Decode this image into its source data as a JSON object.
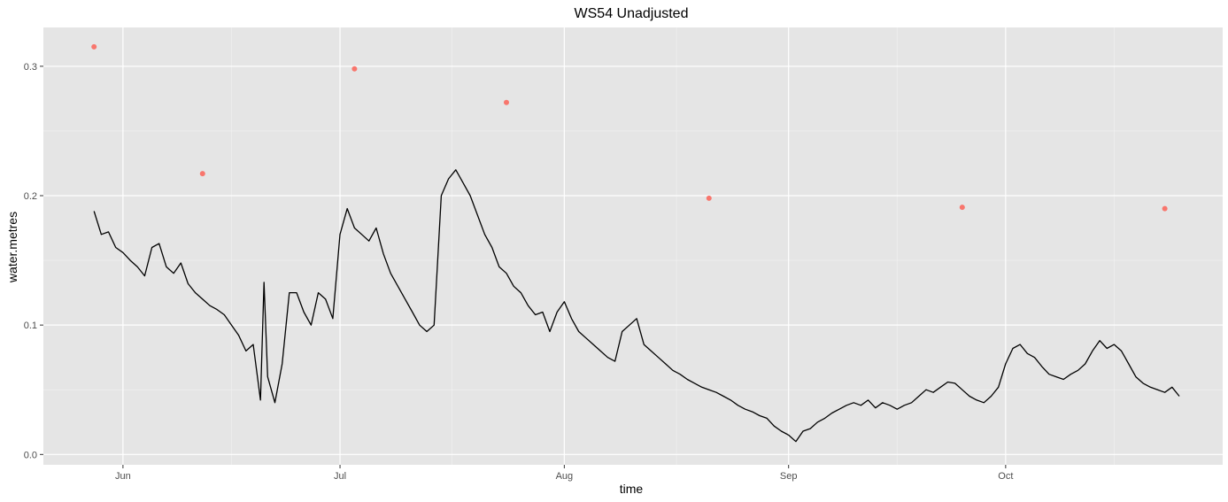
{
  "chart_data": {
    "type": "line",
    "title": "WS54 Unadjusted",
    "xlabel": "time",
    "ylabel": "water.metres",
    "x_ticks": [
      "Jun",
      "Jul",
      "Aug",
      "Sep",
      "Oct"
    ],
    "x_tick_dates": [
      "2019-06-01",
      "2019-07-01",
      "2019-08-01",
      "2019-09-01",
      "2019-10-01"
    ],
    "y_ticks": [
      "0.0",
      "0.1",
      "0.2",
      "0.3"
    ],
    "y_tick_values": [
      0.0,
      0.1,
      0.2,
      0.3
    ],
    "xlim": [
      "2019-05-21",
      "2019-10-31"
    ],
    "ylim": [
      -0.008,
      0.33
    ],
    "grid": true,
    "background": "#e5e5e5",
    "grid_major_color": "#ffffff",
    "line_color": "#000000",
    "point_color": "#f8766d",
    "series": [
      {
        "kind": "line",
        "points": [
          [
            "2019-05-28",
            0.188
          ],
          [
            "2019-05-29",
            0.17
          ],
          [
            "2019-05-30",
            0.172
          ],
          [
            "2019-05-31",
            0.16
          ],
          [
            "2019-06-01",
            0.156
          ],
          [
            "2019-06-02",
            0.15
          ],
          [
            "2019-06-03",
            0.145
          ],
          [
            "2019-06-04",
            0.138
          ],
          [
            "2019-06-05",
            0.16
          ],
          [
            "2019-06-06",
            0.163
          ],
          [
            "2019-06-07",
            0.145
          ],
          [
            "2019-06-08",
            0.14
          ],
          [
            "2019-06-09",
            0.148
          ],
          [
            "2019-06-10",
            0.132
          ],
          [
            "2019-06-11",
            0.125
          ],
          [
            "2019-06-12",
            0.12
          ],
          [
            "2019-06-13",
            0.115
          ],
          [
            "2019-06-14",
            0.112
          ],
          [
            "2019-06-15",
            0.108
          ],
          [
            "2019-06-16",
            0.1
          ],
          [
            "2019-06-17",
            0.092
          ],
          [
            "2019-06-18",
            0.08
          ],
          [
            "2019-06-19",
            0.085
          ],
          [
            "2019-06-20",
            0.042
          ],
          [
            "2019-06-20T12:00",
            0.133
          ],
          [
            "2019-06-21",
            0.06
          ],
          [
            "2019-06-22",
            0.04
          ],
          [
            "2019-06-23",
            0.07
          ],
          [
            "2019-06-24",
            0.125
          ],
          [
            "2019-06-25",
            0.125
          ],
          [
            "2019-06-26",
            0.11
          ],
          [
            "2019-06-27",
            0.1
          ],
          [
            "2019-06-28",
            0.125
          ],
          [
            "2019-06-29",
            0.12
          ],
          [
            "2019-06-30",
            0.105
          ],
          [
            "2019-07-01",
            0.17
          ],
          [
            "2019-07-02",
            0.19
          ],
          [
            "2019-07-03",
            0.175
          ],
          [
            "2019-07-04",
            0.17
          ],
          [
            "2019-07-05",
            0.165
          ],
          [
            "2019-07-06",
            0.175
          ],
          [
            "2019-07-07",
            0.155
          ],
          [
            "2019-07-08",
            0.14
          ],
          [
            "2019-07-09",
            0.13
          ],
          [
            "2019-07-10",
            0.12
          ],
          [
            "2019-07-11",
            0.11
          ],
          [
            "2019-07-12",
            0.1
          ],
          [
            "2019-07-13",
            0.095
          ],
          [
            "2019-07-14",
            0.1
          ],
          [
            "2019-07-15",
            0.2
          ],
          [
            "2019-07-16",
            0.213
          ],
          [
            "2019-07-17",
            0.22
          ],
          [
            "2019-07-18",
            0.21
          ],
          [
            "2019-07-19",
            0.2
          ],
          [
            "2019-07-20",
            0.185
          ],
          [
            "2019-07-21",
            0.17
          ],
          [
            "2019-07-22",
            0.16
          ],
          [
            "2019-07-23",
            0.145
          ],
          [
            "2019-07-24",
            0.14
          ],
          [
            "2019-07-25",
            0.13
          ],
          [
            "2019-07-26",
            0.125
          ],
          [
            "2019-07-27",
            0.115
          ],
          [
            "2019-07-28",
            0.108
          ],
          [
            "2019-07-29",
            0.11
          ],
          [
            "2019-07-30",
            0.095
          ],
          [
            "2019-07-31",
            0.11
          ],
          [
            "2019-08-01",
            0.118
          ],
          [
            "2019-08-02",
            0.105
          ],
          [
            "2019-08-03",
            0.095
          ],
          [
            "2019-08-04",
            0.09
          ],
          [
            "2019-08-05",
            0.085
          ],
          [
            "2019-08-06",
            0.08
          ],
          [
            "2019-08-07",
            0.075
          ],
          [
            "2019-08-08",
            0.072
          ],
          [
            "2019-08-09",
            0.095
          ],
          [
            "2019-08-10",
            0.1
          ],
          [
            "2019-08-11",
            0.105
          ],
          [
            "2019-08-12",
            0.085
          ],
          [
            "2019-08-13",
            0.08
          ],
          [
            "2019-08-14",
            0.075
          ],
          [
            "2019-08-15",
            0.07
          ],
          [
            "2019-08-16",
            0.065
          ],
          [
            "2019-08-17",
            0.062
          ],
          [
            "2019-08-18",
            0.058
          ],
          [
            "2019-08-19",
            0.055
          ],
          [
            "2019-08-20",
            0.052
          ],
          [
            "2019-08-21",
            0.05
          ],
          [
            "2019-08-22",
            0.048
          ],
          [
            "2019-08-23",
            0.045
          ],
          [
            "2019-08-24",
            0.042
          ],
          [
            "2019-08-25",
            0.038
          ],
          [
            "2019-08-26",
            0.035
          ],
          [
            "2019-08-27",
            0.033
          ],
          [
            "2019-08-28",
            0.03
          ],
          [
            "2019-08-29",
            0.028
          ],
          [
            "2019-08-30",
            0.022
          ],
          [
            "2019-08-31",
            0.018
          ],
          [
            "2019-09-01",
            0.015
          ],
          [
            "2019-09-02",
            0.01
          ],
          [
            "2019-09-03",
            0.018
          ],
          [
            "2019-09-04",
            0.02
          ],
          [
            "2019-09-05",
            0.025
          ],
          [
            "2019-09-06",
            0.028
          ],
          [
            "2019-09-07",
            0.032
          ],
          [
            "2019-09-08",
            0.035
          ],
          [
            "2019-09-09",
            0.038
          ],
          [
            "2019-09-10",
            0.04
          ],
          [
            "2019-09-11",
            0.038
          ],
          [
            "2019-09-12",
            0.042
          ],
          [
            "2019-09-13",
            0.036
          ],
          [
            "2019-09-14",
            0.04
          ],
          [
            "2019-09-15",
            0.038
          ],
          [
            "2019-09-16",
            0.035
          ],
          [
            "2019-09-17",
            0.038
          ],
          [
            "2019-09-18",
            0.04
          ],
          [
            "2019-09-19",
            0.045
          ],
          [
            "2019-09-20",
            0.05
          ],
          [
            "2019-09-21",
            0.048
          ],
          [
            "2019-09-22",
            0.052
          ],
          [
            "2019-09-23",
            0.056
          ],
          [
            "2019-09-24",
            0.055
          ],
          [
            "2019-09-25",
            0.05
          ],
          [
            "2019-09-26",
            0.045
          ],
          [
            "2019-09-27",
            0.042
          ],
          [
            "2019-09-28",
            0.04
          ],
          [
            "2019-09-29",
            0.045
          ],
          [
            "2019-09-30",
            0.052
          ],
          [
            "2019-10-01",
            0.07
          ],
          [
            "2019-10-02",
            0.082
          ],
          [
            "2019-10-03",
            0.085
          ],
          [
            "2019-10-04",
            0.078
          ],
          [
            "2019-10-05",
            0.075
          ],
          [
            "2019-10-06",
            0.068
          ],
          [
            "2019-10-07",
            0.062
          ],
          [
            "2019-10-08",
            0.06
          ],
          [
            "2019-10-09",
            0.058
          ],
          [
            "2019-10-10",
            0.062
          ],
          [
            "2019-10-11",
            0.065
          ],
          [
            "2019-10-12",
            0.07
          ],
          [
            "2019-10-13",
            0.08
          ],
          [
            "2019-10-14",
            0.088
          ],
          [
            "2019-10-15",
            0.082
          ],
          [
            "2019-10-16",
            0.085
          ],
          [
            "2019-10-17",
            0.08
          ],
          [
            "2019-10-18",
            0.07
          ],
          [
            "2019-10-19",
            0.06
          ],
          [
            "2019-10-20",
            0.055
          ],
          [
            "2019-10-21",
            0.052
          ],
          [
            "2019-10-22",
            0.05
          ],
          [
            "2019-10-23",
            0.048
          ],
          [
            "2019-10-24",
            0.052
          ],
          [
            "2019-10-25",
            0.045
          ]
        ]
      },
      {
        "kind": "points",
        "points": [
          [
            "2019-05-28",
            0.315
          ],
          [
            "2019-06-12",
            0.217
          ],
          [
            "2019-07-03",
            0.298
          ],
          [
            "2019-07-24",
            0.272
          ],
          [
            "2019-08-21",
            0.198
          ],
          [
            "2019-09-25",
            0.191
          ],
          [
            "2019-10-23",
            0.19
          ]
        ]
      }
    ]
  }
}
